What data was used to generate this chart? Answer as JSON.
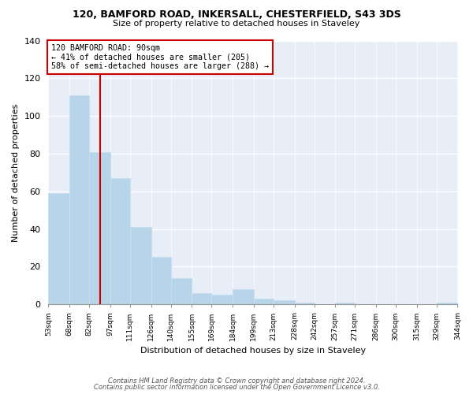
{
  "title1": "120, BAMFORD ROAD, INKERSALL, CHESTERFIELD, S43 3DS",
  "title2": "Size of property relative to detached houses in Staveley",
  "xlabel": "Distribution of detached houses by size in Staveley",
  "ylabel": "Number of detached properties",
  "bar_edges": [
    53,
    68,
    82,
    97,
    111,
    126,
    140,
    155,
    169,
    184,
    199,
    213,
    228,
    242,
    257,
    271,
    286,
    300,
    315,
    329,
    344
  ],
  "bar_heights": [
    59,
    111,
    81,
    67,
    41,
    25,
    14,
    6,
    5,
    8,
    3,
    2,
    1,
    0,
    1,
    0,
    0,
    0,
    0,
    1
  ],
  "bar_color": "#b8d4e8",
  "bar_edge_color": "#c8ddf0",
  "vline_x": 90,
  "vline_color": "#cc0000",
  "annotation_text": "120 BAMFORD ROAD: 90sqm\n← 41% of detached houses are smaller (205)\n58% of semi-detached houses are larger (288) →",
  "annotation_box_color": "#ffffff",
  "annotation_box_edge": "#cc0000",
  "ylim": [
    0,
    140
  ],
  "yticks": [
    0,
    20,
    40,
    60,
    80,
    100,
    120,
    140
  ],
  "tick_labels": [
    "53sqm",
    "68sqm",
    "82sqm",
    "97sqm",
    "111sqm",
    "126sqm",
    "140sqm",
    "155sqm",
    "169sqm",
    "184sqm",
    "199sqm",
    "213sqm",
    "228sqm",
    "242sqm",
    "257sqm",
    "271sqm",
    "286sqm",
    "300sqm",
    "315sqm",
    "329sqm",
    "344sqm"
  ],
  "footnote1": "Contains HM Land Registry data © Crown copyright and database right 2024.",
  "footnote2": "Contains public sector information licensed under the Open Government Licence v3.0.",
  "bg_color": "#ffffff",
  "plot_bg_color": "#e8eef8"
}
